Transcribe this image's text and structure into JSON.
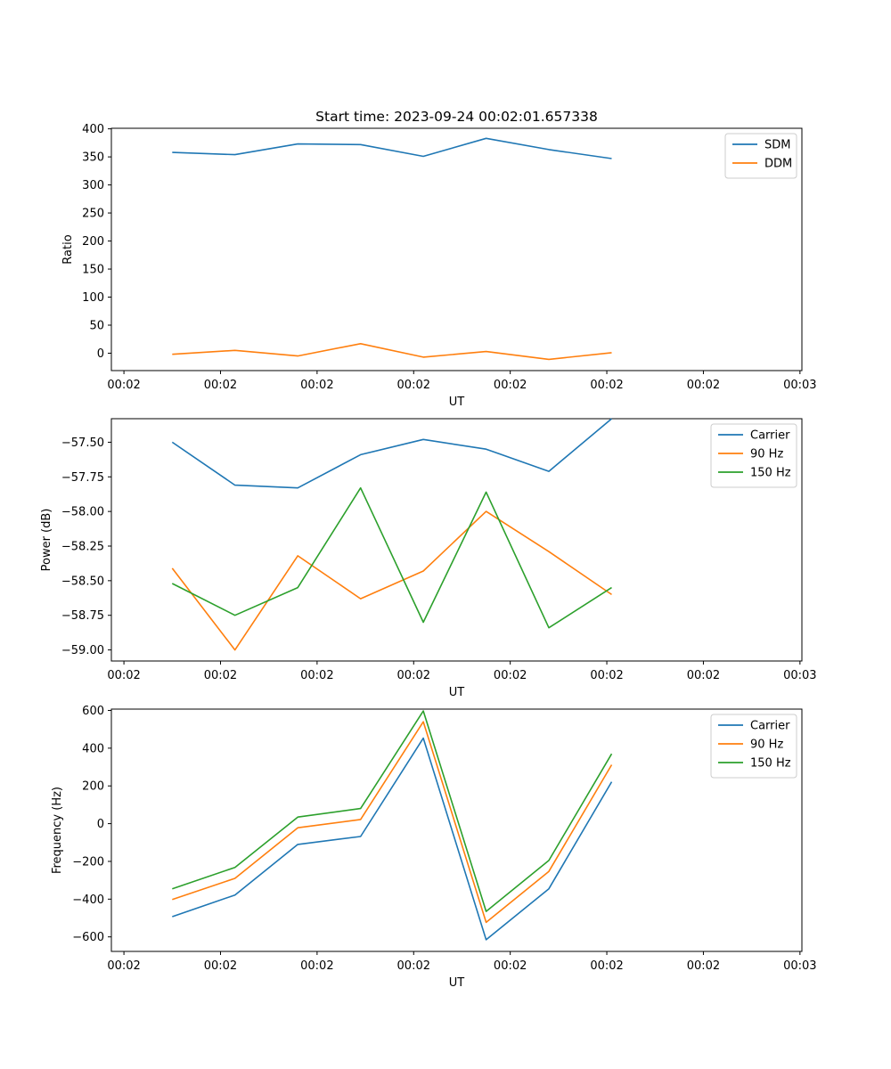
{
  "title": "Start time: 2023-09-24 00:02:01.657338",
  "colors": {
    "blue": "#1f77b4",
    "orange": "#ff7f0e",
    "green": "#2ca02c"
  },
  "chart_data": [
    {
      "type": "line",
      "title": "Start time: 2023-09-24 00:02:01.657338",
      "xlabel": "UT",
      "ylabel": "Ratio",
      "x_tick_labels": [
        "00:02",
        "00:02",
        "00:02",
        "00:02",
        "00:02",
        "00:02",
        "00:02",
        "00:03"
      ],
      "x_tick_values": [
        0,
        1,
        2,
        3,
        4,
        5,
        6,
        7
      ],
      "xlim": [
        -0.13,
        7.02
      ],
      "x": [
        0.5,
        1.15,
        1.8,
        2.45,
        3.1,
        3.75,
        4.4,
        5.05
      ],
      "ylim": [
        -31,
        401
      ],
      "y_ticks": [
        0,
        50,
        100,
        150,
        200,
        250,
        300,
        350,
        400
      ],
      "legend_position": "upper-right",
      "series": [
        {
          "name": "SDM",
          "color": "#1f77b4",
          "values": [
            358,
            354,
            373,
            372,
            351,
            383,
            363,
            347
          ]
        },
        {
          "name": "DDM",
          "color": "#ff7f0e",
          "values": [
            -2,
            5,
            -5,
            17,
            -7,
            3,
            -11,
            1
          ]
        }
      ]
    },
    {
      "type": "line",
      "xlabel": "UT",
      "ylabel": "Power (dB)",
      "x_tick_labels": [
        "00:02",
        "00:02",
        "00:02",
        "00:02",
        "00:02",
        "00:02",
        "00:02",
        "00:03"
      ],
      "x_tick_values": [
        0,
        1,
        2,
        3,
        4,
        5,
        6,
        7
      ],
      "xlim": [
        -0.13,
        7.02
      ],
      "x": [
        0.5,
        1.15,
        1.8,
        2.45,
        3.1,
        3.75,
        4.4,
        5.05
      ],
      "ylim": [
        -59.08,
        -57.33
      ],
      "y_ticks": [
        -59.0,
        -58.75,
        -58.5,
        -58.25,
        -58.0,
        -57.75,
        -57.5
      ],
      "y_tick_labels": [
        "−59.00",
        "−58.75",
        "−58.50",
        "−58.25",
        "−58.00",
        "−57.75",
        "−57.50"
      ],
      "legend_position": "upper-right",
      "series": [
        {
          "name": "Carrier",
          "color": "#1f77b4",
          "values": [
            -57.5,
            -57.81,
            -57.83,
            -57.59,
            -57.48,
            -57.55,
            -57.71,
            -57.33
          ]
        },
        {
          "name": "90 Hz",
          "color": "#ff7f0e",
          "values": [
            -58.41,
            -59.0,
            -58.32,
            -58.63,
            -58.43,
            -58.0,
            -58.29,
            -58.6
          ]
        },
        {
          "name": "150 Hz",
          "color": "#2ca02c",
          "values": [
            -58.52,
            -58.75,
            -58.55,
            -57.83,
            -58.8,
            -57.86,
            -58.84,
            -58.55
          ]
        }
      ]
    },
    {
      "type": "line",
      "xlabel": "UT",
      "ylabel": "Frequency (Hz)",
      "x_tick_labels": [
        "00:02",
        "00:02",
        "00:02",
        "00:02",
        "00:02",
        "00:02",
        "00:02",
        "00:03"
      ],
      "x_tick_values": [
        0,
        1,
        2,
        3,
        4,
        5,
        6,
        7
      ],
      "xlim": [
        -0.13,
        7.02
      ],
      "x": [
        0.5,
        1.15,
        1.8,
        2.45,
        3.1,
        3.75,
        4.4,
        5.05
      ],
      "ylim": [
        -677,
        607
      ],
      "y_ticks": [
        -600,
        -400,
        -200,
        0,
        200,
        400,
        600
      ],
      "y_tick_labels": [
        "−600",
        "−400",
        "−200",
        "0",
        "200",
        "400",
        "600"
      ],
      "legend_position": "upper-right",
      "series": [
        {
          "name": "Carrier",
          "color": "#1f77b4",
          "values": [
            -493,
            -378,
            -110,
            -68,
            453,
            -615,
            -345,
            222
          ]
        },
        {
          "name": "90 Hz",
          "color": "#ff7f0e",
          "values": [
            -402,
            -290,
            -22,
            22,
            540,
            -523,
            -253,
            312
          ]
        },
        {
          "name": "150 Hz",
          "color": "#2ca02c",
          "values": [
            -345,
            -232,
            35,
            80,
            597,
            -465,
            -195,
            370
          ]
        }
      ]
    }
  ]
}
